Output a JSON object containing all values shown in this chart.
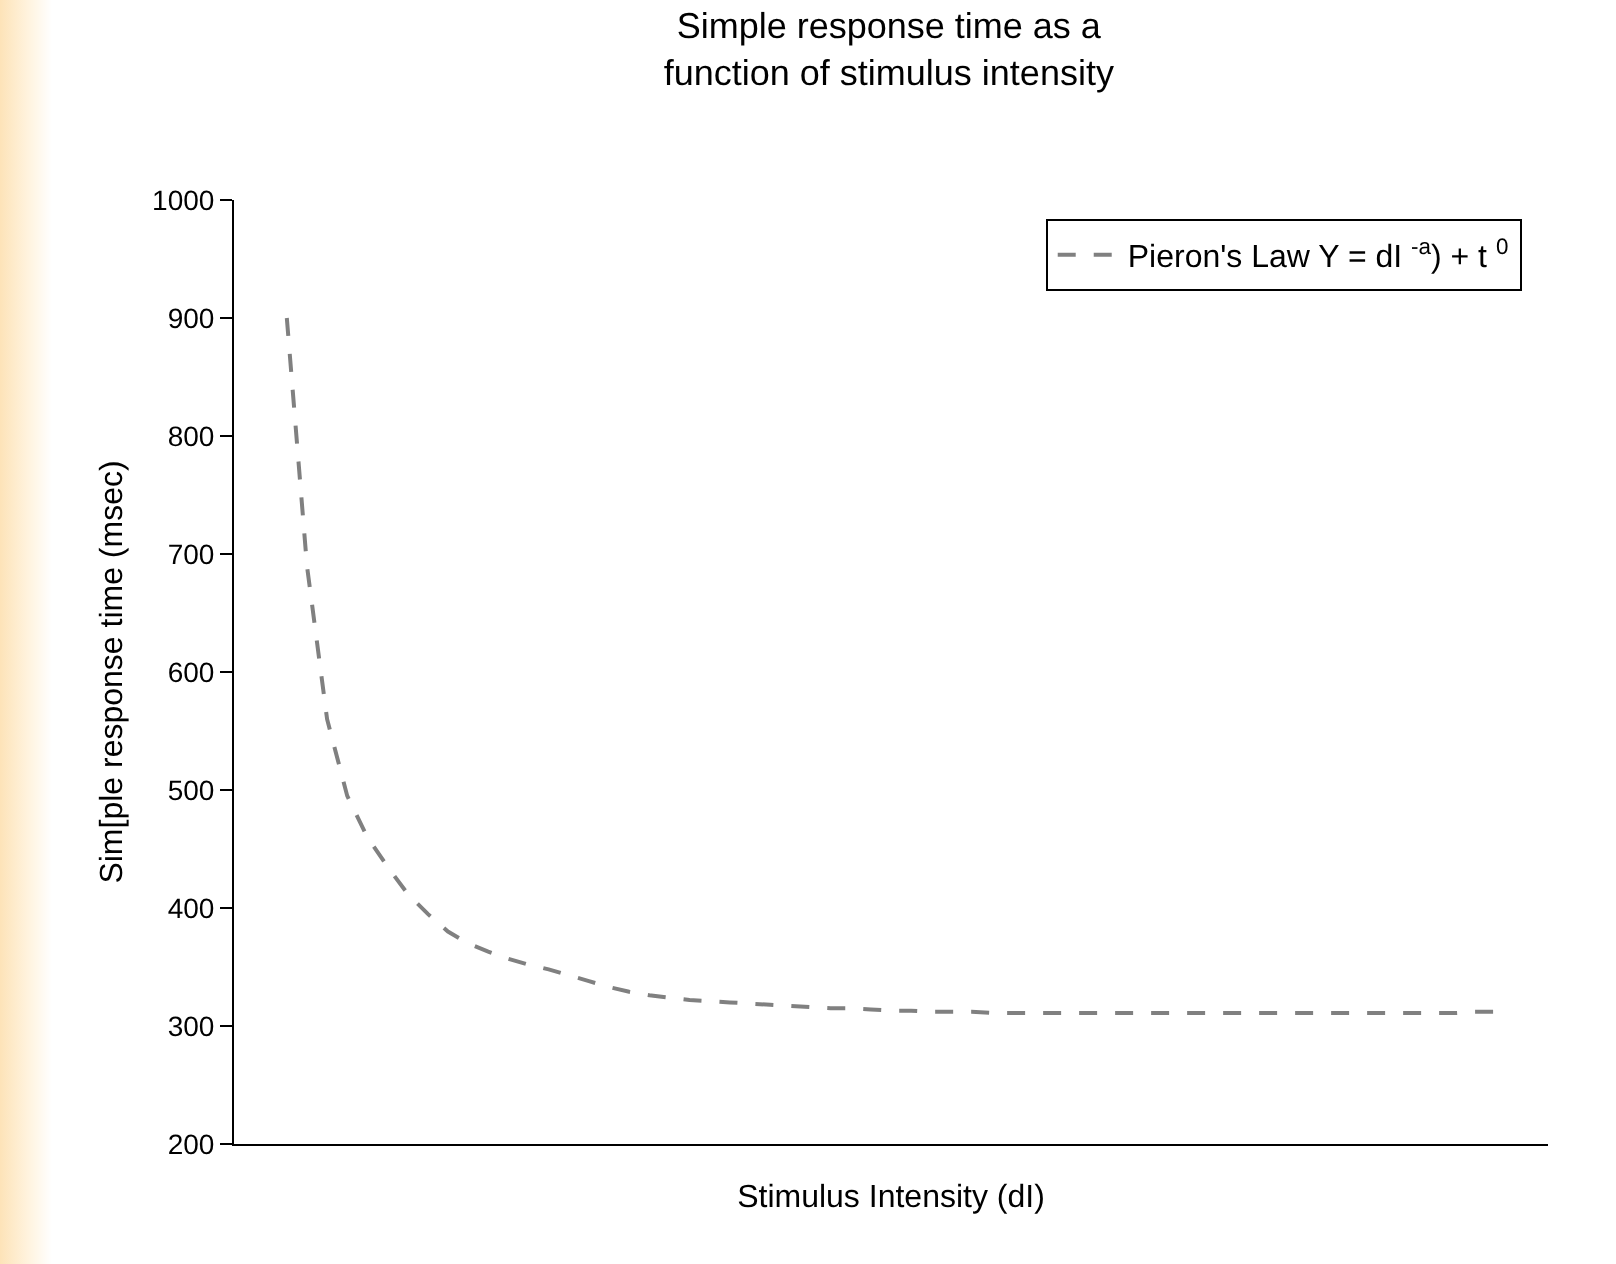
{
  "chart_data": {
    "type": "line",
    "title": "Simple response time as a\nfunction of stimulus intensity",
    "xlabel": "Stimulus Intensity (dI)",
    "ylabel": "Sim[ple response time (msec)",
    "categories": [
      null,
      null,
      null,
      null,
      null,
      null,
      null,
      null,
      null,
      null,
      null,
      null,
      null,
      null,
      null,
      null,
      null,
      null,
      null,
      null,
      null,
      null,
      null,
      null,
      null,
      null,
      null,
      null,
      null,
      null,
      null,
      null,
      null,
      null,
      null,
      null,
      null,
      null,
      null,
      null,
      null,
      null,
      null,
      null,
      null,
      null,
      null,
      null,
      null,
      null,
      null,
      null,
      null,
      null,
      null,
      null,
      null,
      null,
      null,
      null,
      null
    ],
    "series": [
      {
        "name": "Pieron's Law Y = dI $^{-a}$) + t $^{0}$",
        "color": "#808080",
        "values": [
          900,
          690,
          560,
          495,
          460,
          435,
          412,
          395,
          380,
          370,
          363,
          357,
          352,
          348,
          343,
          338,
          333,
          329,
          326,
          324,
          322,
          321,
          320,
          319,
          318,
          317,
          316,
          315,
          315,
          314,
          313,
          313,
          312,
          312,
          312,
          311,
          311,
          311,
          311,
          311,
          311,
          311,
          311,
          311,
          311,
          311,
          311,
          311,
          311,
          311,
          311,
          311,
          311,
          311,
          311,
          311,
          311,
          311,
          311,
          312,
          312
        ]
      }
    ],
    "ylim": [
      200,
      1000
    ],
    "yticks": [
      200,
      300,
      400,
      500,
      600,
      700,
      800,
      900,
      1000
    ],
    "tick_labels": "y",
    "legend": "top right",
    "line_style": "dashed"
  }
}
